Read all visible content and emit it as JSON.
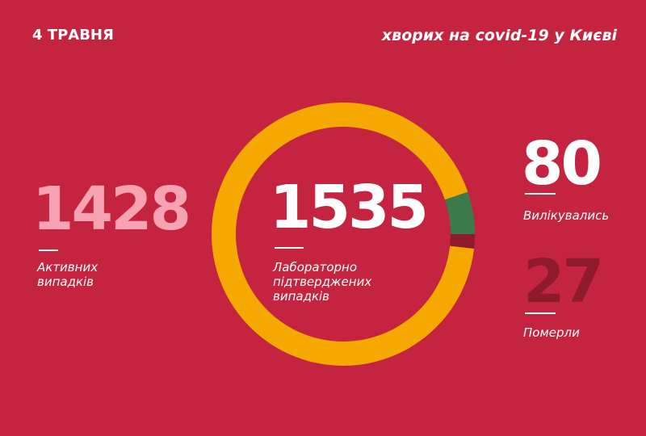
{
  "chart_data": {
    "type": "donut",
    "date": "4 ТРАВНЯ",
    "title": "хворих на covid-19 у Києві",
    "total": 1535,
    "total_label": "Лабораторно підтверджених випадків",
    "categories": [
      "Активних випадків",
      "Вилікувались",
      "Померли"
    ],
    "values": [
      1428,
      80,
      27
    ],
    "colors": [
      "#f5a900",
      "#3b7a4b",
      "#8e1a2c"
    ]
  }
}
